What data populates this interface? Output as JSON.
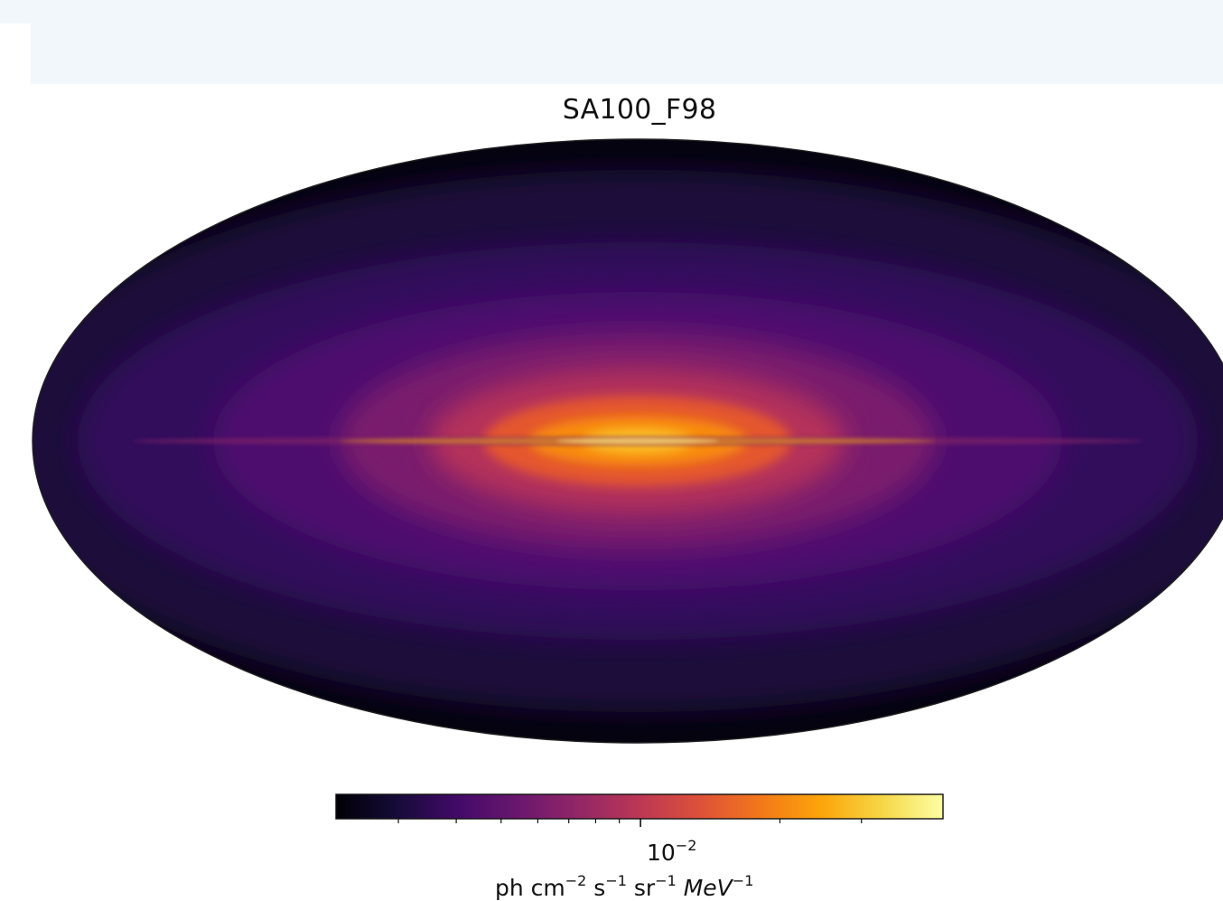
{
  "chart_data": {
    "type": "heatmap",
    "projection": "mollweide",
    "title": "SA100_F98",
    "colormap": "inferno",
    "colorbar": {
      "orientation": "horizontal",
      "scale": "log",
      "major_tick": {
        "value": 0.01,
        "base": "10",
        "exponent": "−2"
      },
      "minor_ticks": [
        0.003,
        0.004,
        0.005,
        0.006,
        0.007,
        0.008,
        0.009,
        0.02,
        0.03
      ],
      "range": [
        0.0022,
        0.045
      ],
      "unit_parts": [
        "ph cm",
        "−2",
        " s",
        "−1",
        " sr",
        "−1",
        " ",
        "MeV",
        "−1"
      ]
    },
    "colors": {
      "background_band": "#f2f7fc",
      "text": "#111111"
    }
  }
}
